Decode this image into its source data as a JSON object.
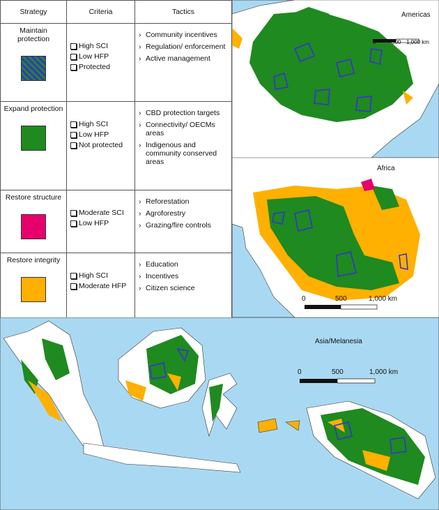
{
  "table": {
    "headers": [
      "Strategy",
      "Criteria",
      "Tactics"
    ],
    "rows": [
      {
        "strategy": "Maintain protection",
        "criteria": [
          "High SCI",
          "Low HFP",
          "Protected"
        ],
        "tactics": [
          "Community incentives",
          "Regulation/ enforcement",
          "Active management"
        ]
      },
      {
        "strategy": "Expand protection",
        "criteria": [
          "High SCI",
          "Low HFP",
          "Not protected"
        ],
        "tactics": [
          "CBD protection targets",
          "Connectivity/ OECMs areas",
          "Indigenous and community conserved areas"
        ]
      },
      {
        "strategy": "Restore structure",
        "criteria": [
          "Moderate SCI",
          "Low HFP"
        ],
        "tactics": [
          "Reforestation",
          "Agroforestry",
          "Grazing/fire controls"
        ]
      },
      {
        "strategy": "Restore integrity",
        "criteria": [
          "High SCI",
          "Moderate HFP"
        ],
        "tactics": [
          "Education",
          "Incentives",
          "Citizen science"
        ]
      }
    ]
  },
  "maps": [
    {
      "title": "Americas",
      "scale_labels": [
        "0",
        "500",
        "1,000 km"
      ]
    },
    {
      "title": "Africa",
      "scale_labels": [
        "0",
        "500",
        "1,000 km"
      ]
    },
    {
      "title": "Asia/Melanesia",
      "scale_labels": [
        "0",
        "500",
        "1,000 km"
      ]
    }
  ]
}
